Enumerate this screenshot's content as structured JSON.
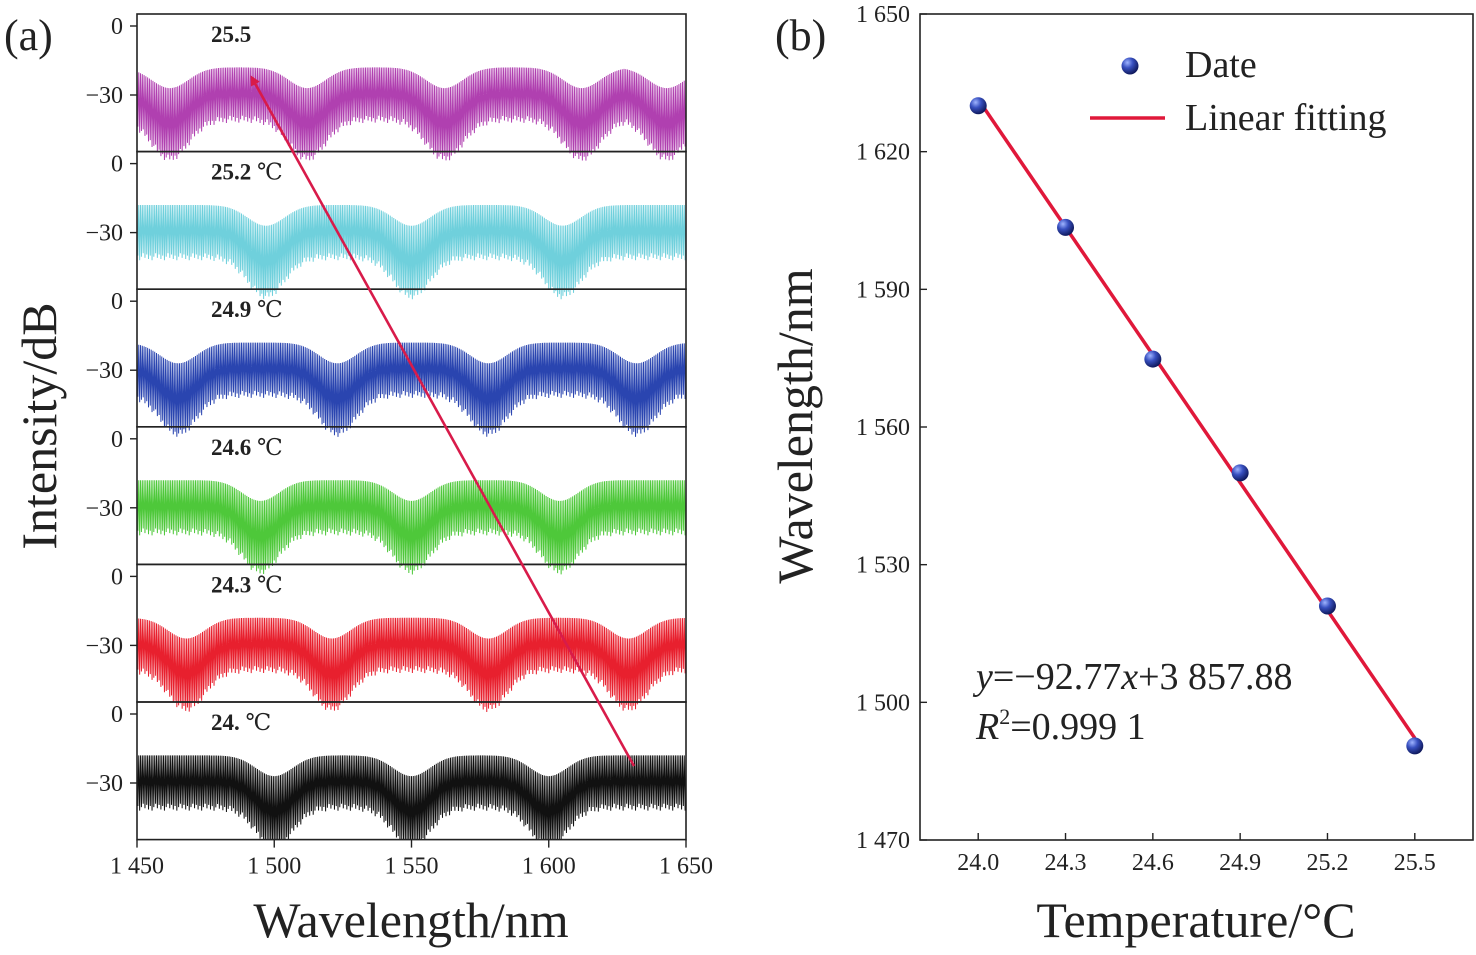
{
  "panel_a": {
    "label": "(a)",
    "xlabel": "Wavelength/nm",
    "ylabel": "Intensity/dB",
    "x_ticks": [
      "1 450",
      "1 500",
      "1 550",
      "1 600",
      "1 650"
    ],
    "y_ticks": [
      "0",
      "−30"
    ],
    "unit": "℃",
    "traces": [
      {
        "temp": "25.5",
        "show_unit": false,
        "color": "#b040b0"
      },
      {
        "temp": "25.2",
        "show_unit": true,
        "color": "#6fd0dc"
      },
      {
        "temp": "24.9",
        "show_unit": true,
        "color": "#2a45b0"
      },
      {
        "temp": "24.6",
        "show_unit": true,
        "color": "#4ec83a"
      },
      {
        "temp": "24.3",
        "show_unit": true,
        "color": "#e8202e"
      },
      {
        "temp": "24.",
        "show_unit": true,
        "color": "#111111"
      }
    ],
    "arrow_color": "#d81b4a"
  },
  "panel_b": {
    "label": "(b)",
    "xlabel": "Temperature/°C",
    "ylabel": "Wavelength/nm",
    "x_ticks": [
      "24.0",
      "24.3",
      "24.6",
      "24.9",
      "25.2",
      "25.5"
    ],
    "y_ticks": [
      "1 470",
      "1 500",
      "1 530",
      "1 560",
      "1 590",
      "1 620",
      "1 650"
    ],
    "legend": {
      "points": "Date",
      "line": "Linear fitting"
    },
    "equation": {
      "y": "y",
      "eq1_rest": "=−92.77",
      "x": "x",
      "eq1_tail": "+3 857.88",
      "r": "R",
      "sup": "2",
      "eq2_rest": "=0.999 1"
    }
  },
  "chart_data": [
    {
      "type": "line",
      "title": "",
      "xlabel": "Wavelength/nm",
      "ylabel": "Intensity/dB",
      "xlim": [
        1450,
        1650
      ],
      "ylim_per_trace": [
        -50,
        0
      ],
      "series": [
        {
          "name": "25.5",
          "color": "#b040b0"
        },
        {
          "name": "25.2 ℃",
          "color": "#6fd0dc"
        },
        {
          "name": "24.9 ℃",
          "color": "#2a45b0"
        },
        {
          "name": "24.6 ℃",
          "color": "#4ec83a"
        },
        {
          "name": "24.3 ℃",
          "color": "#e8202e"
        },
        {
          "name": "24. ℃",
          "color": "#111111"
        }
      ],
      "dip_wavelengths_per_series": [
        [
          1462,
          1512,
          1562,
          1612,
          1643
        ],
        [
          1497,
          1550,
          1605
        ],
        [
          1465,
          1523,
          1578,
          1632
        ],
        [
          1495,
          1550,
          1604
        ],
        [
          1468,
          1521,
          1578,
          1629
        ],
        [
          1500,
          1550,
          1600
        ]
      ],
      "annotation": "arrow from ~1632 nm (24. ℃ trace) to ~1493 nm (25.5 trace)"
    },
    {
      "type": "scatter",
      "title": "",
      "xlabel": "Temperature/°C",
      "ylabel": "Wavelength/nm",
      "xlim": [
        23.8,
        25.7
      ],
      "ylim": [
        1470,
        1650
      ],
      "series": [
        {
          "name": "Date",
          "x": [
            24.0,
            24.3,
            24.6,
            24.9,
            25.2,
            25.5
          ],
          "y": [
            1630.0,
            1603.5,
            1574.8,
            1550.0,
            1521.0,
            1490.5
          ],
          "color": "#2a3fa8"
        },
        {
          "name": "Linear fitting",
          "x": [
            24.0,
            25.5
          ],
          "y": [
            1631.4,
            1492.2
          ],
          "color": "#e0183a"
        }
      ],
      "fit": {
        "slope": -92.77,
        "intercept": 3857.88,
        "r2": 0.9991
      },
      "legend_position": "top-right"
    }
  ]
}
